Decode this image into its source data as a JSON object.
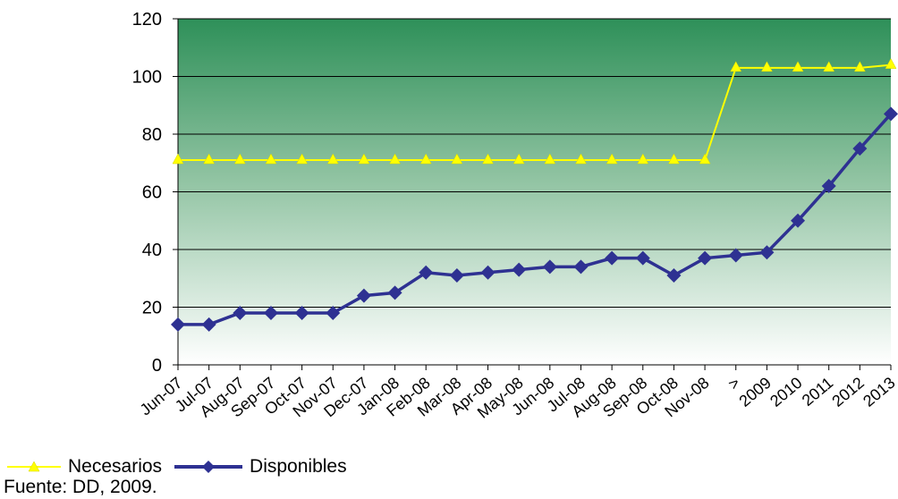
{
  "chart_data": {
    "type": "line",
    "title": "",
    "categories": [
      "Jun-07",
      "Jul-07",
      "Aug-07",
      "Sep-07",
      "Oct-07",
      "Nov-07",
      "Dec-07",
      "Jan-08",
      "Feb-08",
      "Mar-08",
      "Apr-08",
      "May-08",
      "Jun-08",
      "Jul-08",
      "Aug-08",
      "Sep-08",
      "Oct-08",
      "Nov-08",
      ">",
      "2009",
      "2010",
      "2011",
      "2012",
      "2013"
    ],
    "series": [
      {
        "name": "Necesarios",
        "color": "#ffff00",
        "values": [
          71,
          71,
          71,
          71,
          71,
          71,
          71,
          71,
          71,
          71,
          71,
          71,
          71,
          71,
          71,
          71,
          71,
          71,
          103,
          103,
          103,
          103,
          103,
          104
        ]
      },
      {
        "name": "Disponibles",
        "color": "#2e3192",
        "values": [
          14,
          14,
          18,
          18,
          18,
          18,
          24,
          25,
          32,
          31,
          32,
          33,
          34,
          34,
          37,
          37,
          31,
          37,
          38,
          39,
          50,
          62,
          75,
          87
        ]
      }
    ],
    "ylim": [
      0,
      120
    ],
    "yticks": [
      0,
      20,
      40,
      60,
      80,
      100,
      120
    ],
    "grid": true,
    "legend": "bottom-left",
    "xlabel": "",
    "ylabel": ""
  },
  "source": "Fuente: DD, 2009."
}
